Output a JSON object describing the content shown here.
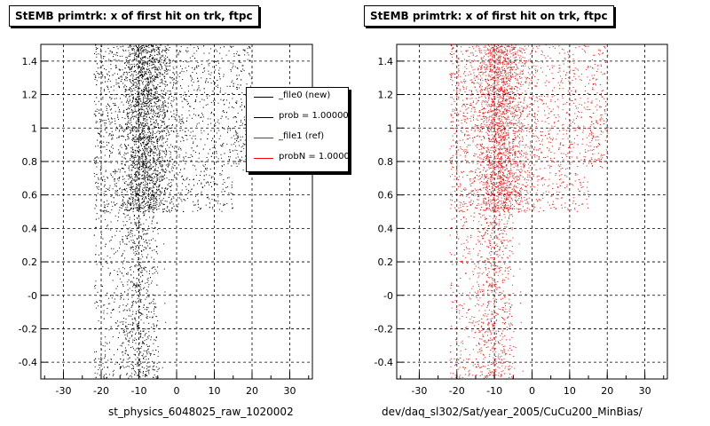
{
  "chart_data": [
    {
      "type": "scatter",
      "title": "StEMB primtrk: x of first hit on trk, ftpc",
      "xlabel": "st_physics_6048025_raw_1020002",
      "ylabel": "",
      "xlim": [
        -36,
        36
      ],
      "ylim": [
        -0.5,
        1.5
      ],
      "x_ticks": [
        -30,
        -20,
        -10,
        0,
        10,
        20,
        30
      ],
      "y_ticks": [
        -0.4,
        -0.2,
        0,
        0.2,
        0.4,
        0.6,
        0.8,
        1,
        1.2,
        1.4
      ],
      "y_tick_labels": [
        "-0.4",
        "-0.2",
        "-0",
        "0.2",
        "0.4",
        "0.6",
        "0.8",
        "1",
        "1.2",
        "1.4"
      ],
      "grid": true,
      "point_color": "#000000",
      "legend_position": "top-right",
      "legend": [
        {
          "label": "_file0 (new)",
          "color": "#000000"
        },
        {
          "label": "prob = 1.000000",
          "color": "#000000"
        },
        {
          "label": "_file1 (ref)",
          "color": "#ff0000"
        },
        {
          "label": "probN = 1.000000",
          "color": "#ff0000"
        }
      ]
    },
    {
      "type": "scatter",
      "title": "StEMB primtrk: x of first hit on trk, ftpc",
      "xlabel": "dev/daq_sl302/Sat/year_2005/CuCu200_MinBias/",
      "ylabel": "",
      "xlim": [
        -36,
        36
      ],
      "ylim": [
        -0.5,
        1.5
      ],
      "x_ticks": [
        -30,
        -20,
        -10,
        0,
        10,
        20,
        30
      ],
      "y_ticks": [
        -0.4,
        -0.2,
        0,
        0.2,
        0.4,
        0.6,
        0.8,
        1,
        1.2,
        1.4
      ],
      "y_tick_labels": [
        "-0.4",
        "-0.2",
        "-0",
        "0.2",
        "0.4",
        "0.6",
        "0.8",
        "1",
        "1.2",
        "1.4"
      ],
      "grid": true,
      "point_color": "#ff0000"
    }
  ]
}
